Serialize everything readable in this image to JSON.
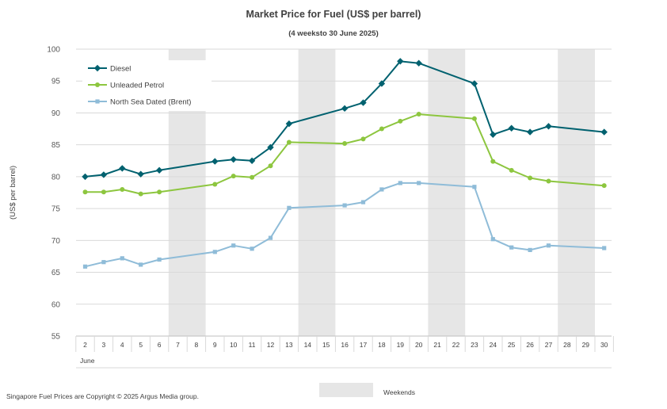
{
  "chart_data": {
    "type": "line",
    "title": "Market Price for Fuel (US$ per barrel)",
    "subtitle": "(4 weeksto 30 June 2025)",
    "ylabel": "(US$ per barrel)",
    "xlabel": "",
    "x_group_label": "June",
    "ylim": [
      55,
      100
    ],
    "yticks": [
      55,
      60,
      65,
      70,
      75,
      80,
      85,
      90,
      95,
      100
    ],
    "x": [
      2,
      3,
      4,
      5,
      6,
      7,
      8,
      9,
      10,
      11,
      12,
      13,
      14,
      15,
      16,
      17,
      18,
      19,
      20,
      21,
      22,
      23,
      24,
      25,
      26,
      27,
      28,
      29,
      30
    ],
    "grid": "horizontal",
    "legend_position": "top-left",
    "weekend_bands": [
      [
        7,
        8
      ],
      [
        14,
        15
      ],
      [
        21,
        22
      ],
      [
        28,
        29
      ]
    ],
    "series": [
      {
        "name": "Diesel",
        "color": "#00616f",
        "marker": "diamond",
        "points": [
          [
            2,
            80.0
          ],
          [
            3,
            80.3
          ],
          [
            4,
            81.3
          ],
          [
            5,
            80.4
          ],
          [
            6,
            81.0
          ],
          [
            9,
            82.4
          ],
          [
            10,
            82.7
          ],
          [
            11,
            82.5
          ],
          [
            12,
            84.6
          ],
          [
            13,
            88.3
          ],
          [
            16,
            90.7
          ],
          [
            17,
            91.6
          ],
          [
            18,
            94.6
          ],
          [
            19,
            98.1
          ],
          [
            20,
            97.8
          ],
          [
            23,
            94.6
          ],
          [
            24,
            86.6
          ],
          [
            25,
            87.6
          ],
          [
            26,
            87.0
          ],
          [
            27,
            87.9
          ],
          [
            30,
            87.0
          ]
        ]
      },
      {
        "name": "Unleaded Petrol",
        "color": "#8dc63f",
        "marker": "circle",
        "points": [
          [
            2,
            77.6
          ],
          [
            3,
            77.6
          ],
          [
            4,
            78.0
          ],
          [
            5,
            77.3
          ],
          [
            6,
            77.6
          ],
          [
            9,
            78.8
          ],
          [
            10,
            80.1
          ],
          [
            11,
            79.9
          ],
          [
            12,
            81.7
          ],
          [
            13,
            85.4
          ],
          [
            16,
            85.2
          ],
          [
            17,
            85.9
          ],
          [
            18,
            87.5
          ],
          [
            19,
            88.7
          ],
          [
            20,
            89.8
          ],
          [
            23,
            89.1
          ],
          [
            24,
            82.4
          ],
          [
            25,
            81.0
          ],
          [
            26,
            79.8
          ],
          [
            27,
            79.3
          ],
          [
            30,
            78.6
          ]
        ]
      },
      {
        "name": "North Sea Dated (Brent)",
        "color": "#8fbcd8",
        "marker": "square",
        "points": [
          [
            2,
            65.9
          ],
          [
            3,
            66.6
          ],
          [
            4,
            67.2
          ],
          [
            5,
            66.2
          ],
          [
            6,
            67.0
          ],
          [
            9,
            68.2
          ],
          [
            10,
            69.2
          ],
          [
            11,
            68.7
          ],
          [
            12,
            70.4
          ],
          [
            13,
            75.1
          ],
          [
            16,
            75.5
          ],
          [
            17,
            76.0
          ],
          [
            18,
            78.0
          ],
          [
            19,
            79.0
          ],
          [
            20,
            79.0
          ],
          [
            23,
            78.4
          ],
          [
            24,
            70.2
          ],
          [
            25,
            68.9
          ],
          [
            26,
            68.5
          ],
          [
            27,
            69.2
          ],
          [
            30,
            68.8
          ]
        ]
      }
    ]
  },
  "footer": {
    "copyright": "Singapore Fuel Prices are Copyright © 2025 Argus Media group.",
    "weekends_label": "Weekends"
  }
}
